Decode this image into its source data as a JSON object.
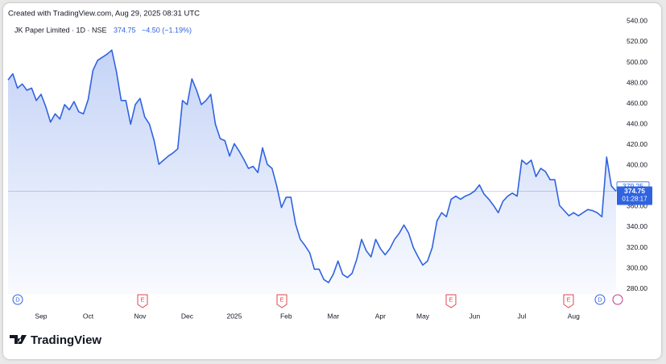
{
  "header": "Created with TradingView.com, Aug 29, 2025 08:31 UTC",
  "chart_data": {
    "type": "line",
    "title": "JK Paper Limited · 1D · NSE",
    "last_price": "374.75",
    "change": "−4.50 (−1.19%)",
    "color": "#2f63e0",
    "values": [
      483,
      489,
      475,
      479,
      473,
      475,
      463,
      469,
      457,
      442,
      450,
      445,
      459,
      454,
      462,
      452,
      450,
      464,
      492,
      502,
      505,
      508,
      512,
      491,
      463,
      463,
      440,
      459,
      465,
      447,
      440,
      424,
      401,
      405,
      409,
      412,
      416,
      463,
      459,
      484,
      473,
      459,
      463,
      469,
      440,
      426,
      424,
      409,
      421,
      414,
      406,
      397,
      399,
      393,
      417,
      401,
      397,
      380,
      359,
      369,
      369,
      343,
      328,
      322,
      315,
      299,
      299,
      289,
      286,
      294,
      307,
      294,
      291,
      295,
      309,
      328,
      317,
      311,
      328,
      319,
      313,
      319,
      328,
      334,
      342,
      334,
      320,
      311,
      303,
      307,
      320,
      346,
      354,
      350,
      367,
      370,
      367,
      370,
      372,
      375,
      381,
      372,
      367,
      361,
      354,
      365,
      370,
      373,
      370,
      405,
      401,
      405,
      389,
      397,
      394,
      386,
      386,
      361,
      356,
      351,
      354,
      351,
      354,
      357,
      356,
      354,
      350,
      408,
      380,
      374.75
    ],
    "categories": [
      null,
      null,
      null,
      null,
      null,
      null,
      null,
      "Sep",
      null,
      null,
      null,
      null,
      null,
      null,
      null,
      null,
      null,
      "Oct",
      null,
      null,
      null,
      null,
      null,
      null,
      null,
      null,
      null,
      null,
      "Nov",
      null,
      null,
      null,
      null,
      null,
      null,
      null,
      null,
      null,
      "Dec",
      null,
      null,
      null,
      null,
      null,
      null,
      null,
      null,
      null,
      "2025",
      null,
      null,
      null,
      null,
      null,
      null,
      null,
      null,
      null,
      null,
      "Feb",
      null,
      null,
      null,
      null,
      null,
      null,
      null,
      null,
      null,
      "Mar",
      null,
      null,
      null,
      null,
      null,
      null,
      null,
      null,
      null,
      "Apr",
      null,
      null,
      null,
      null,
      null,
      null,
      null,
      null,
      "May",
      null,
      null,
      null,
      null,
      null,
      null,
      null,
      null,
      null,
      null,
      "Jun",
      null,
      null,
      null,
      null,
      null,
      null,
      null,
      null,
      null,
      "Jul",
      null,
      null,
      null,
      null,
      null,
      null,
      null,
      null,
      null,
      null,
      "Aug",
      null,
      null,
      null,
      null,
      null,
      null,
      null,
      null,
      null
    ],
    "ylim": [
      275,
      545
    ],
    "yticks": [
      {
        "value": 280,
        "label": "280.00"
      },
      {
        "value": 300,
        "label": "300.00"
      },
      {
        "value": 320,
        "label": "320.00"
      },
      {
        "value": 340,
        "label": "340.00"
      },
      {
        "value": 360,
        "label": "360.00"
      },
      {
        "value": 380,
        "label": "380.00"
      },
      {
        "value": 400,
        "label": "400.00"
      },
      {
        "value": 420,
        "label": "420.00"
      },
      {
        "value": 440,
        "label": "440.00"
      },
      {
        "value": 460,
        "label": "460.00"
      },
      {
        "value": 480,
        "label": "480.00"
      },
      {
        "value": 500,
        "label": "500.00"
      },
      {
        "value": 520,
        "label": "520.00"
      },
      {
        "value": 540,
        "label": "540.00"
      }
    ],
    "marker_label": {
      "value": 379.25,
      "label": "379.25"
    },
    "price_label": {
      "value": 374.75,
      "label": "374.75"
    },
    "countdown": "01:28:17",
    "events": [
      "D",
      "E",
      "E",
      "E",
      "E",
      "D"
    ]
  },
  "logo": "TradingView"
}
